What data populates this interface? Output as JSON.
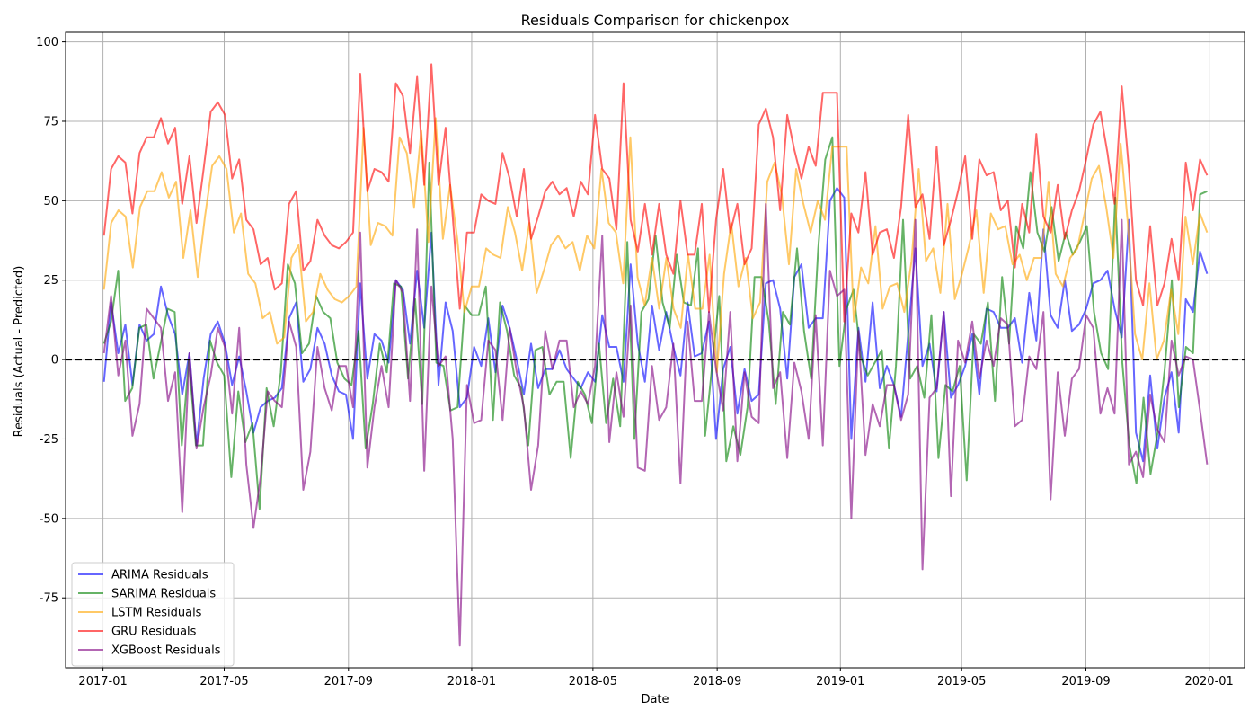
{
  "chart_data": {
    "type": "line",
    "title": "Residuals Comparison for chickenpox",
    "xlabel": "Date",
    "ylabel": "Residuals (Actual - Predicted)",
    "ylim": [
      -97,
      103
    ],
    "xlim": [
      "2016-11-25",
      "2020-02-05"
    ],
    "grid": true,
    "legend_position": "lower-left",
    "reference_line": {
      "y": 0,
      "style": "dashed",
      "color": "#000000"
    },
    "x_ticks": [
      {
        "date": "2017-01-01",
        "label": "2017-01"
      },
      {
        "date": "2017-05-01",
        "label": "2017-05"
      },
      {
        "date": "2017-09-01",
        "label": "2017-09"
      },
      {
        "date": "2018-01-01",
        "label": "2018-01"
      },
      {
        "date": "2018-05-01",
        "label": "2018-05"
      },
      {
        "date": "2018-09-01",
        "label": "2018-09"
      },
      {
        "date": "2019-01-01",
        "label": "2019-01"
      },
      {
        "date": "2019-05-01",
        "label": "2019-05"
      },
      {
        "date": "2019-09-01",
        "label": "2019-09"
      },
      {
        "date": "2020-01-01",
        "label": "2020-01"
      }
    ],
    "y_ticks": [
      -75,
      -50,
      -25,
      0,
      25,
      50,
      75,
      100
    ],
    "x_start": "2017-01-02",
    "x_end": "2019-12-30",
    "x_step_days": 7,
    "series": [
      {
        "name": "ARIMA Residuals",
        "color": "#0000ff",
        "values": [
          -7,
          18,
          2,
          11,
          -8,
          11,
          6,
          8,
          23,
          14,
          8,
          -11,
          2,
          -27,
          -6,
          8,
          12,
          5,
          -8,
          1,
          -10,
          -23,
          -15,
          -13,
          -12,
          -9,
          13,
          18,
          -7,
          -3,
          10,
          5,
          -5,
          -10,
          -11,
          -25,
          24,
          -6,
          8,
          6,
          -1,
          25,
          22,
          5,
          28,
          10,
          40,
          -8,
          18,
          9,
          -15,
          -12,
          4,
          -2,
          13,
          -4,
          17,
          10,
          0,
          -11,
          5,
          -9,
          -3,
          -3,
          3,
          -3,
          -6,
          -9,
          -4,
          -7,
          14,
          4,
          4,
          -7,
          30,
          5,
          -7,
          17,
          3,
          15,
          4,
          -5,
          18,
          1,
          2,
          12,
          -25,
          -3,
          4,
          -17,
          -3,
          -13,
          -11,
          24,
          25,
          16,
          -6,
          26,
          30,
          10,
          13,
          13,
          50,
          54,
          51,
          -25,
          10,
          -7,
          18,
          -9,
          -2,
          -8,
          -18,
          8,
          35,
          -2,
          5,
          -10,
          15,
          -12,
          -8,
          -2,
          8,
          -11,
          16,
          15,
          10,
          10,
          13,
          -1,
          21,
          6,
          41,
          14,
          10,
          25,
          9,
          11,
          16,
          24,
          25,
          28,
          16,
          7,
          44,
          -23,
          -32,
          -5,
          -28,
          -12,
          -4,
          -23,
          19,
          15,
          34,
          27
        ]
      },
      {
        "name": "SARIMA Residuals",
        "color": "#008000",
        "values": [
          5,
          12,
          28,
          -13,
          -9,
          10,
          11,
          -6,
          5,
          16,
          15,
          -27,
          0,
          -27,
          -27,
          6,
          -1,
          -5,
          -37,
          -10,
          -26,
          -20,
          -47,
          -9,
          -21,
          -4,
          30,
          24,
          2,
          5,
          20,
          15,
          13,
          -1,
          -6,
          -8,
          9,
          -28,
          -14,
          5,
          -4,
          24,
          23,
          -6,
          19,
          -14,
          62,
          -1,
          -2,
          -16,
          -15,
          17,
          14,
          14,
          23,
          -19,
          18,
          9,
          -5,
          -9,
          -27,
          3,
          4,
          -11,
          -7,
          -7,
          -31,
          -7,
          -11,
          -20,
          5,
          -20,
          -6,
          -21,
          37,
          -25,
          15,
          19,
          39,
          18,
          10,
          33,
          18,
          17,
          35,
          -24,
          -2,
          20,
          -32,
          -21,
          -30,
          -15,
          26,
          26,
          12,
          -14,
          15,
          11,
          35,
          9,
          -6,
          35,
          63,
          70,
          -2,
          16,
          22,
          1,
          -5,
          -1,
          3,
          -28,
          -2,
          44,
          -6,
          -2,
          -12,
          14,
          -31,
          -8,
          -10,
          -2,
          -38,
          8,
          5,
          18,
          -13,
          26,
          5,
          42,
          35,
          59,
          40,
          34,
          48,
          31,
          40,
          33,
          37,
          42,
          15,
          2,
          -3,
          51,
          -1,
          -27,
          -39,
          -12,
          -36,
          -23,
          -3,
          25,
          -15,
          4,
          2,
          52,
          53
        ]
      },
      {
        "name": "LSTM Residuals",
        "color": "#ffa500",
        "values": [
          22,
          43,
          47,
          45,
          29,
          48,
          53,
          53,
          59,
          51,
          56,
          32,
          47,
          26,
          45,
          61,
          64,
          60,
          40,
          46,
          27,
          24,
          13,
          15,
          5,
          7,
          32,
          36,
          12,
          15,
          27,
          22,
          19,
          18,
          20,
          23,
          73,
          36,
          43,
          42,
          39,
          70,
          65,
          48,
          72,
          37,
          76,
          38,
          55,
          38,
          15,
          23,
          23,
          35,
          33,
          32,
          48,
          40,
          28,
          43,
          21,
          28,
          36,
          39,
          35,
          37,
          28,
          39,
          35,
          60,
          43,
          40,
          24,
          70,
          26,
          17,
          32,
          16,
          32,
          16,
          10,
          33,
          16,
          16,
          33,
          -4,
          27,
          43,
          23,
          32,
          13,
          18,
          56,
          62,
          52,
          30,
          60,
          49,
          40,
          50,
          44,
          67,
          67,
          67,
          12,
          29,
          24,
          42,
          16,
          23,
          24,
          15,
          31,
          60,
          31,
          35,
          21,
          49,
          19,
          27,
          36,
          47,
          21,
          46,
          41,
          42,
          30,
          33,
          25,
          32,
          32,
          56,
          27,
          23,
          32,
          35,
          46,
          57,
          61,
          48,
          32,
          68,
          43,
          8,
          0,
          24,
          0,
          6,
          22,
          8,
          45,
          30,
          46,
          40
        ]
      },
      {
        "name": "GRU Residuals",
        "color": "#ff0000",
        "values": [
          39,
          60,
          64,
          62,
          46,
          65,
          70,
          70,
          76,
          68,
          73,
          49,
          64,
          43,
          60,
          78,
          81,
          77,
          57,
          63,
          44,
          41,
          30,
          32,
          22,
          24,
          49,
          53,
          28,
          31,
          44,
          39,
          36,
          35,
          37,
          40,
          90,
          53,
          60,
          59,
          56,
          87,
          83,
          65,
          89,
          55,
          93,
          55,
          73,
          45,
          16,
          40,
          40,
          52,
          50,
          49,
          65,
          57,
          45,
          60,
          38,
          45,
          53,
          56,
          52,
          54,
          45,
          56,
          52,
          77,
          60,
          57,
          41,
          87,
          44,
          34,
          49,
          33,
          49,
          33,
          27,
          50,
          33,
          33,
          49,
          15,
          44,
          60,
          40,
          49,
          30,
          35,
          74,
          79,
          70,
          47,
          77,
          66,
          57,
          67,
          61,
          84,
          84,
          84,
          12,
          46,
          40,
          59,
          33,
          40,
          41,
          32,
          48,
          77,
          48,
          52,
          38,
          67,
          36,
          44,
          53,
          64,
          38,
          63,
          58,
          59,
          47,
          50,
          29,
          49,
          40,
          71,
          45,
          40,
          55,
          38,
          47,
          53,
          63,
          74,
          78,
          65,
          49,
          86,
          60,
          25,
          17,
          42,
          17,
          24,
          38,
          25,
          62,
          47,
          63,
          58
        ]
      },
      {
        "name": "XGBoost Residuals",
        "color": "#800080",
        "values": [
          2,
          20,
          -5,
          6,
          -24,
          -14,
          16,
          13,
          10,
          -13,
          -4,
          -48,
          2,
          -28,
          -15,
          -5,
          10,
          4,
          -17,
          10,
          -33,
          -53,
          -37,
          -10,
          -13,
          -15,
          12,
          4,
          -41,
          -29,
          4,
          -9,
          -16,
          -2,
          -2,
          -15,
          40,
          -34,
          -15,
          -2,
          -15,
          25,
          21,
          -13,
          41,
          -35,
          23,
          -2,
          1,
          -25,
          -90,
          -8,
          -20,
          -19,
          6,
          3,
          -19,
          10,
          -4,
          -15,
          -41,
          -27,
          9,
          -3,
          6,
          6,
          -15,
          -10,
          -14,
          -2,
          39,
          -26,
          -4,
          -18,
          17,
          -34,
          -35,
          -2,
          -19,
          -15,
          5,
          -39,
          12,
          -13,
          -13,
          15,
          -3,
          -16,
          15,
          -32,
          -4,
          -18,
          -20,
          49,
          -9,
          -4,
          -31,
          -1,
          -10,
          -25,
          14,
          -27,
          28,
          20,
          22,
          -50,
          9,
          -30,
          -14,
          -21,
          -8,
          -8,
          -19,
          -11,
          44,
          -66,
          -12,
          -9,
          15,
          -43,
          6,
          -1,
          12,
          -6,
          6,
          -2,
          13,
          11,
          -21,
          -19,
          1,
          -3,
          15,
          -44,
          -4,
          -24,
          -6,
          -3,
          14,
          10,
          -17,
          -9,
          -17,
          44,
          -33,
          -29,
          -37,
          -11,
          -22,
          -26,
          6,
          -5,
          1,
          0,
          -16,
          -33
        ]
      }
    ]
  }
}
